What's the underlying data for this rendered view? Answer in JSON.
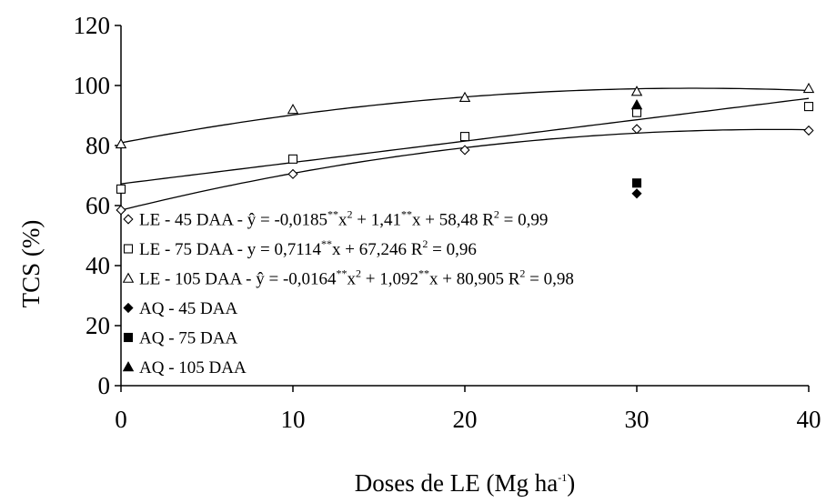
{
  "chart_data": {
    "type": "scatter",
    "xlabel": "Doses de LE (Mg ha",
    "xlabel_sup": "-1",
    "xlabel_end": ")",
    "ylabel": "TCS (%)",
    "xlim": [
      0,
      40
    ],
    "ylim": [
      0,
      120
    ],
    "x_ticks": [
      0,
      10,
      20,
      30,
      40
    ],
    "y_ticks": [
      0,
      20,
      40,
      60,
      80,
      100,
      120
    ],
    "grid": false,
    "legend_position": "left",
    "series": [
      {
        "name": "LE - 45 DAA",
        "marker": "diamond-open",
        "x": [
          0,
          10,
          20,
          30,
          40
        ],
        "y": [
          58.5,
          70.5,
          78.5,
          85.5,
          85
        ],
        "fit": {
          "type": "quadratic",
          "a": -0.0185,
          "b": 1.41,
          "c": 58.48
        },
        "legend_parts": [
          {
            "t": "LE - 45 DAA - ŷ = -0,0185"
          },
          {
            "t": "**",
            "sup": true
          },
          {
            "t": "x"
          },
          {
            "t": "2",
            "sup": true
          },
          {
            "t": " + 1,41"
          },
          {
            "t": "**",
            "sup": true
          },
          {
            "t": "x + 58,48 R"
          },
          {
            "t": "2",
            "sup": true
          },
          {
            "t": " = 0,99"
          }
        ]
      },
      {
        "name": "LE - 75 DAA",
        "marker": "square-open",
        "x": [
          0,
          10,
          20,
          30,
          40
        ],
        "y": [
          65.5,
          75.5,
          83,
          91,
          93
        ],
        "fit": {
          "type": "linear",
          "a": 0.7114,
          "b": 67.246
        },
        "legend_parts": [
          {
            "t": "LE - 75 DAA - y = 0,7114"
          },
          {
            "t": "**",
            "sup": true
          },
          {
            "t": "x + 67,246 R"
          },
          {
            "t": "2",
            "sup": true
          },
          {
            "t": " = 0,96"
          }
        ]
      },
      {
        "name": "LE - 105 DAA",
        "marker": "triangle-open",
        "x": [
          0,
          10,
          20,
          30,
          40
        ],
        "y": [
          80.5,
          92,
          96,
          98,
          99
        ],
        "fit": {
          "type": "quadratic",
          "a": -0.0164,
          "b": 1.092,
          "c": 80.905
        },
        "legend_parts": [
          {
            "t": "LE - 105 DAA - ŷ = -0,0164"
          },
          {
            "t": "**",
            "sup": true
          },
          {
            "t": "x"
          },
          {
            "t": "2",
            "sup": true
          },
          {
            "t": " + 1,092"
          },
          {
            "t": "**",
            "sup": true
          },
          {
            "t": "x + 80,905 R"
          },
          {
            "t": "2",
            "sup": true
          },
          {
            "t": " = 0,98"
          }
        ]
      },
      {
        "name": "AQ - 45 DAA",
        "marker": "diamond-filled",
        "x": [
          30
        ],
        "y": [
          64
        ],
        "legend_parts": [
          {
            "t": "AQ - 45 DAA"
          }
        ]
      },
      {
        "name": "AQ - 75 DAA",
        "marker": "square-filled",
        "x": [
          30
        ],
        "y": [
          67.5
        ],
        "legend_parts": [
          {
            "t": "AQ - 75 DAA"
          }
        ]
      },
      {
        "name": "AQ - 105 DAA",
        "marker": "triangle-filled",
        "x": [
          30
        ],
        "y": [
          93.5
        ],
        "legend_parts": [
          {
            "t": "AQ - 105 DAA"
          }
        ]
      }
    ]
  }
}
